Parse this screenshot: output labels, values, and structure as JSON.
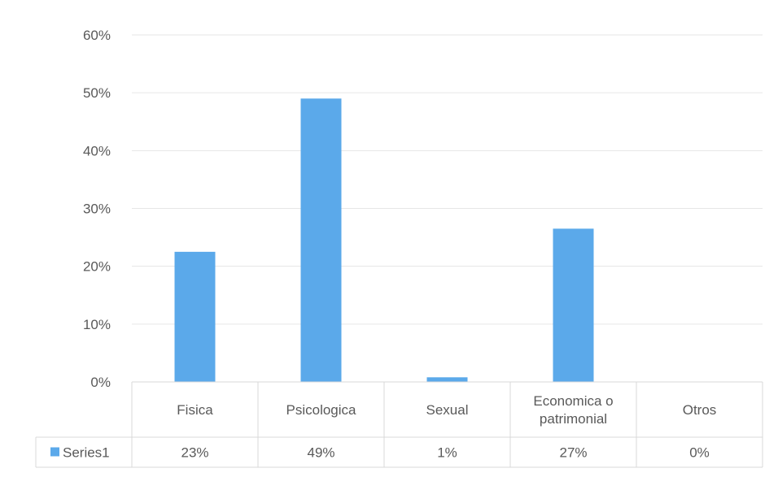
{
  "chart_data": {
    "type": "bar",
    "title": "",
    "xlabel": "",
    "ylabel": "",
    "categories": [
      "Fisica",
      "Psicologica",
      "Sexual",
      "Economica o patrimonial",
      "Otros"
    ],
    "category_lines": [
      [
        "Fisica"
      ],
      [
        "Psicologica"
      ],
      [
        "Sexual"
      ],
      [
        "Economica o",
        "patrimonial"
      ],
      [
        "Otros"
      ]
    ],
    "series": [
      {
        "name": "Series1",
        "values": [
          0.225,
          0.49,
          0.008,
          0.265,
          0.0
        ],
        "labels": [
          "23%",
          "49%",
          "1%",
          "27%",
          "0%"
        ]
      }
    ],
    "ylim": [
      0,
      0.6
    ],
    "yticks": [
      0,
      0.1,
      0.2,
      0.3,
      0.4,
      0.5,
      0.6
    ],
    "ytick_labels": [
      "0%",
      "10%",
      "20%",
      "30%",
      "40%",
      "50%",
      "60%"
    ],
    "grid": true,
    "legend": "data-table-left",
    "data_table": true,
    "bar_color": "#5ba9ea",
    "grid_color": "#e6e6e6"
  }
}
